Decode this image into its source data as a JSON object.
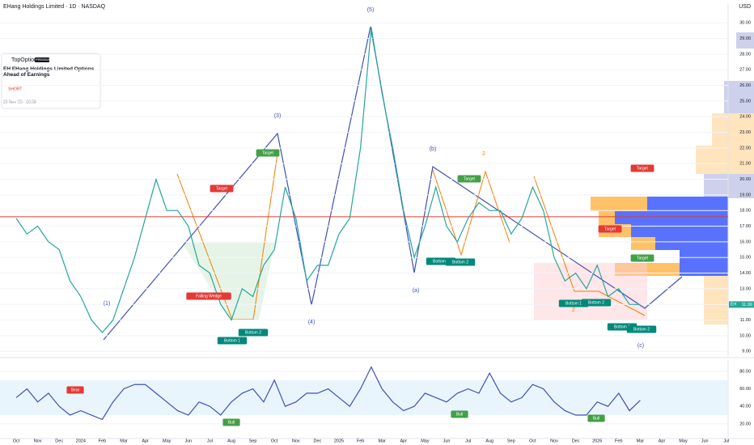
{
  "header": {
    "title": "EHang Holdings Limited · 1D · NASDAQ",
    "currency": "USD"
  },
  "idea_card": {
    "author": "TopOptions",
    "badge": "PREMIUM",
    "title": "EH EHang Holdings Limited Options Ahead of Earnings",
    "direction": "SHORT",
    "date": "20 Nov '25 · 20:58"
  },
  "chart_data": [
    {
      "type": "line",
      "symbol": "EH",
      "categories": [
        "Oct",
        null,
        "Nov",
        null,
        "Dec",
        null,
        "2024",
        null,
        "Feb",
        null,
        "Mar",
        null,
        "Apr",
        null,
        "May",
        null,
        "Jun",
        null,
        "Jul",
        null,
        "Aug",
        null,
        "Sep",
        null,
        "Oct",
        null,
        "Nov",
        null,
        "Dec",
        null,
        "2025",
        null,
        "Feb",
        null,
        "Mar",
        null,
        "Apr",
        null,
        "May",
        null,
        "Jun",
        null,
        "Jul",
        null,
        "Aug",
        null,
        "Sep",
        null,
        "Oct",
        null,
        "Nov",
        null,
        "Dec",
        null,
        "2026",
        null,
        "Feb",
        null,
        "Mar",
        null,
        "Apr",
        null,
        "May",
        null,
        "Jun",
        null,
        "Jul",
        null
      ],
      "series": [
        {
          "name": "EH",
          "color": "#26a69a",
          "values": [
            17.5,
            16.5,
            17,
            16,
            15.5,
            13.5,
            12.5,
            11,
            10.2,
            11,
            13,
            15,
            17.5,
            20,
            18,
            18,
            17,
            14.5,
            14,
            12,
            11,
            13,
            12.5,
            14.5,
            15.5,
            19.5,
            17.5,
            13.5,
            14.5,
            14.5,
            16.5,
            17.5,
            22,
            29.7,
            25.5,
            22,
            18,
            15,
            17,
            19.5,
            17,
            16,
            17.5,
            18.5,
            18,
            18,
            16.5,
            17.5,
            19.5,
            18,
            15,
            13.5,
            14,
            13,
            14.5,
            12.5,
            13,
            12,
            11.99,
            null,
            null,
            null,
            null,
            null,
            null,
            null,
            null,
            null
          ]
        }
      ],
      "hline": 17.6,
      "hline_color": "#e53935",
      "ylim": [
        8.7,
        31.2
      ],
      "yticks": [
        {
          "value": 9,
          "label": "9.00"
        },
        {
          "value": 10,
          "label": "10.00"
        },
        {
          "value": 11,
          "label": "11.00"
        },
        {
          "value": 12,
          "label": "12.00"
        },
        {
          "value": 13,
          "label": "13.00"
        },
        {
          "value": 14,
          "label": "14.00"
        },
        {
          "value": 15,
          "label": "15.00"
        },
        {
          "value": 16,
          "label": "16.00"
        },
        {
          "value": 17,
          "label": "17.00"
        },
        {
          "value": 18,
          "label": "18.00"
        },
        {
          "value": 19,
          "label": "19.00"
        },
        {
          "value": 20,
          "label": "20.00"
        },
        {
          "value": 21,
          "label": "21.00"
        },
        {
          "value": 22,
          "label": "22.00"
        },
        {
          "value": 23,
          "label": "23.00"
        },
        {
          "value": 24,
          "label": "24.00"
        },
        {
          "value": 25,
          "label": "25.00"
        },
        {
          "value": 26,
          "label": "26.00"
        },
        {
          "value": 27,
          "label": "27.00"
        },
        {
          "value": 28,
          "label": "28.00"
        },
        {
          "value": 29,
          "label": "29.00"
        },
        {
          "value": 30,
          "label": "30.00"
        }
      ],
      "annotations": [
        "(1)",
        "(3)",
        "(4)",
        "(5)",
        "(a)",
        "(b)",
        "(c)",
        "2",
        "2",
        "Target",
        "Target",
        "Target",
        "Target",
        "Target",
        "Target",
        "Falling Wedge",
        "Bottom 1",
        "Bottom 2",
        "Bottom 1",
        "Bottom 2",
        "Bottom 1",
        "Bottom 2",
        "Bottom 1",
        "Bottom 2"
      ]
    },
    {
      "type": "line",
      "name": "RSI",
      "series": [
        {
          "name": "RSI",
          "color": "#3f51b5",
          "values": [
            50,
            60,
            45,
            55,
            40,
            30,
            35,
            30,
            25,
            45,
            60,
            65,
            65,
            55,
            45,
            35,
            30,
            45,
            40,
            30,
            45,
            55,
            60,
            45,
            70,
            40,
            45,
            55,
            55,
            60,
            50,
            40,
            60,
            85,
            60,
            45,
            35,
            40,
            55,
            50,
            45,
            55,
            60,
            55,
            78,
            55,
            45,
            50,
            65,
            60,
            45,
            35,
            30,
            30,
            45,
            40,
            55,
            35,
            47,
            null,
            null,
            null,
            null,
            null,
            null,
            null,
            null,
            null
          ]
        }
      ],
      "band": [
        30,
        70
      ],
      "ylim": [
        5,
        93
      ],
      "yticks": [
        {
          "value": 20,
          "label": "20.00"
        },
        {
          "value": 40,
          "label": "40.00"
        },
        {
          "value": 60,
          "label": "60.00"
        },
        {
          "value": 80,
          "label": "80.00"
        }
      ],
      "annotations": [
        "Bear",
        "Bull",
        "Bull",
        "Bull"
      ]
    }
  ]
}
